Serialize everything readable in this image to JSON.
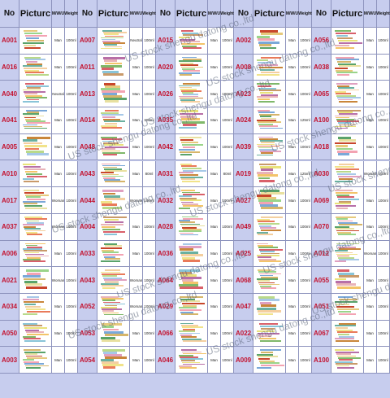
{
  "headers": [
    "No",
    "Picturc",
    "M/W/U",
    "Weight"
  ],
  "columns": [
    {
      "rows": [
        [
          "A001",
          "Man",
          "100ml"
        ],
        [
          "A016",
          "Man",
          "100ml"
        ],
        [
          "A040",
          "Neutral",
          "100ml"
        ],
        [
          "A041",
          "Man",
          "100ml"
        ],
        [
          "A005",
          "Man",
          "100ml"
        ],
        [
          "A010",
          "Man",
          "100ml"
        ],
        [
          "A017",
          "Woman",
          "100ml"
        ],
        [
          "A037",
          "Woman",
          "100ml"
        ],
        [
          "A006",
          "Man",
          "100ml"
        ],
        [
          "A021",
          "Woman",
          "100ml"
        ],
        [
          "A034",
          "Man",
          "100ml"
        ],
        [
          "A050",
          "Man",
          "100ml"
        ],
        [
          "A003",
          "Man",
          "100ml"
        ]
      ]
    },
    {
      "rows": [
        [
          "A007",
          "Neutral",
          "100ml"
        ],
        [
          "A011",
          "Man",
          "100ml"
        ],
        [
          "A013",
          "Man",
          "100ml"
        ],
        [
          "A014",
          "Man",
          "100ml"
        ],
        [
          "A048",
          "Man",
          "100ml"
        ],
        [
          "A043",
          "Man",
          "80ml"
        ],
        [
          "A044",
          "Woman",
          "100ml"
        ],
        [
          "A004",
          "Man",
          "100ml"
        ],
        [
          "A033",
          "Man",
          "100ml"
        ],
        [
          "A043",
          "Woman",
          "100ml"
        ],
        [
          "A052",
          "Woman",
          "100ml"
        ],
        [
          "A053",
          "Man",
          "100ml"
        ],
        [
          "A054",
          "Man",
          "100ml"
        ]
      ]
    },
    {
      "rows": [
        [
          "A015",
          "Man",
          "100ml"
        ],
        [
          "A020",
          "Man",
          "100ml"
        ],
        [
          "A026",
          "Man",
          "100ml"
        ],
        [
          "A035",
          "Man",
          "100ml"
        ],
        [
          "A042",
          "Man",
          "100ml"
        ],
        [
          "A031",
          "Man",
          "80ml"
        ],
        [
          "A032",
          "Man",
          "100ml"
        ],
        [
          "A028",
          "Man",
          "100ml"
        ],
        [
          "A036",
          "Man",
          "100ml"
        ],
        [
          "A064",
          "Man",
          "100ml"
        ],
        [
          "A029",
          "Man",
          "100ml"
        ],
        [
          "A066",
          "Man",
          "100ml"
        ],
        [
          "A046",
          "Man",
          "100ml"
        ]
      ]
    },
    {
      "rows": [
        [
          "A002",
          "Man",
          "100ml"
        ],
        [
          "A008",
          "Man",
          "100ml"
        ],
        [
          "A023",
          "Man",
          "100ml"
        ],
        [
          "A024",
          "Man",
          "125ml"
        ],
        [
          "A039",
          "Man",
          "100ml"
        ],
        [
          "A019",
          "Man",
          "125ml"
        ],
        [
          "A027",
          "Man",
          "100ml"
        ],
        [
          "A049",
          "Man",
          "100ml"
        ],
        [
          "A025",
          "Man",
          "100ml"
        ],
        [
          "A068",
          "Man",
          "100ml"
        ],
        [
          "A047",
          "Man",
          "100ml"
        ],
        [
          "A022",
          "Man",
          "100ml"
        ],
        [
          "A009",
          "Man",
          "100ml"
        ]
      ]
    },
    {
      "rows": [
        [
          "A056",
          "Man",
          "75ml"
        ],
        [
          "A038",
          "Man",
          "100ml"
        ],
        [
          "A065",
          "Neutral",
          "75ml"
        ],
        [
          "A100",
          "Man",
          "125ml"
        ],
        [
          "A018",
          "Man",
          "100ml"
        ],
        [
          "A030",
          "Neutral",
          "75ml"
        ],
        [
          "A069",
          "Man",
          "100ml"
        ],
        [
          "A070",
          "Man",
          "100ml"
        ],
        [
          "A012",
          "Man",
          "100ml"
        ],
        [
          "A055",
          "Man",
          "100ml"
        ],
        [
          "A051",
          "Neutral",
          "100ml"
        ],
        [
          "A067",
          "Man",
          "100ml"
        ],
        [
          "A100",
          "Man",
          "100ml"
        ]
      ]
    }
  ],
  "last_column_values": [
    [
      "Man",
      "100ml"
    ],
    [
      "Man",
      "100ml"
    ],
    [
      "Man",
      "100ml"
    ],
    [
      "Man",
      "100ml"
    ],
    [
      "Man",
      "100ml"
    ],
    [
      "Woman",
      "100ml"
    ],
    [
      "Man",
      "100ml"
    ],
    [
      "Man",
      "100ml"
    ],
    [
      "Woman",
      "100ml"
    ],
    [
      "Man",
      "100ml"
    ],
    [
      "Man",
      "100ml"
    ],
    [
      "Man",
      "100ml"
    ],
    [
      "Man",
      "100ml"
    ]
  ],
  "watermark": "US stock shengu datong co.,ltd",
  "colors": {
    "bg": "#c7cdee",
    "code": "#c4122f",
    "grid": "#8d93bd"
  }
}
